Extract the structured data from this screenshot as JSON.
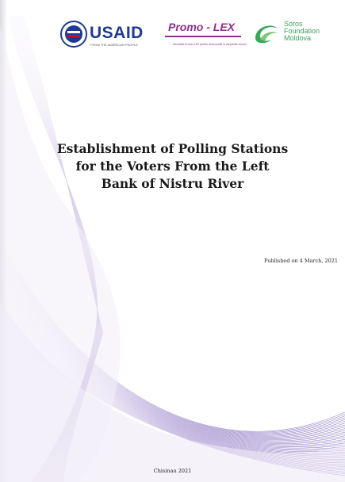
{
  "logos": {
    "usaid": {
      "word_main": "USAID",
      "tagline": "FROM THE AMERICAN PEOPLE",
      "icon": "usaid-seal-icon"
    },
    "promo_lex": {
      "word": "Promo - LEX",
      "tagline": "Asociatia Promo-LEX pentru democratie si drepturile omului",
      "icon": "promo-lex-logo"
    },
    "soros": {
      "line1": "Soros",
      "line2": "Foundation",
      "line3": "Moldova",
      "icon": "soros-swirl-icon"
    }
  },
  "title": {
    "line1": "Establishment of Polling Stations",
    "line2": "for the Voters From the Left",
    "line3": "Bank of Nistru River"
  },
  "published": "Published on 4 March, 2021",
  "footer": "Chisinau 2021",
  "colors": {
    "usaid_blue": "#1f3a93",
    "usaid_red": "#c8102e",
    "promo_purple": "#8b2f8a",
    "soros_green": "#3ba55c",
    "wave_purple": "#8e79c4"
  }
}
